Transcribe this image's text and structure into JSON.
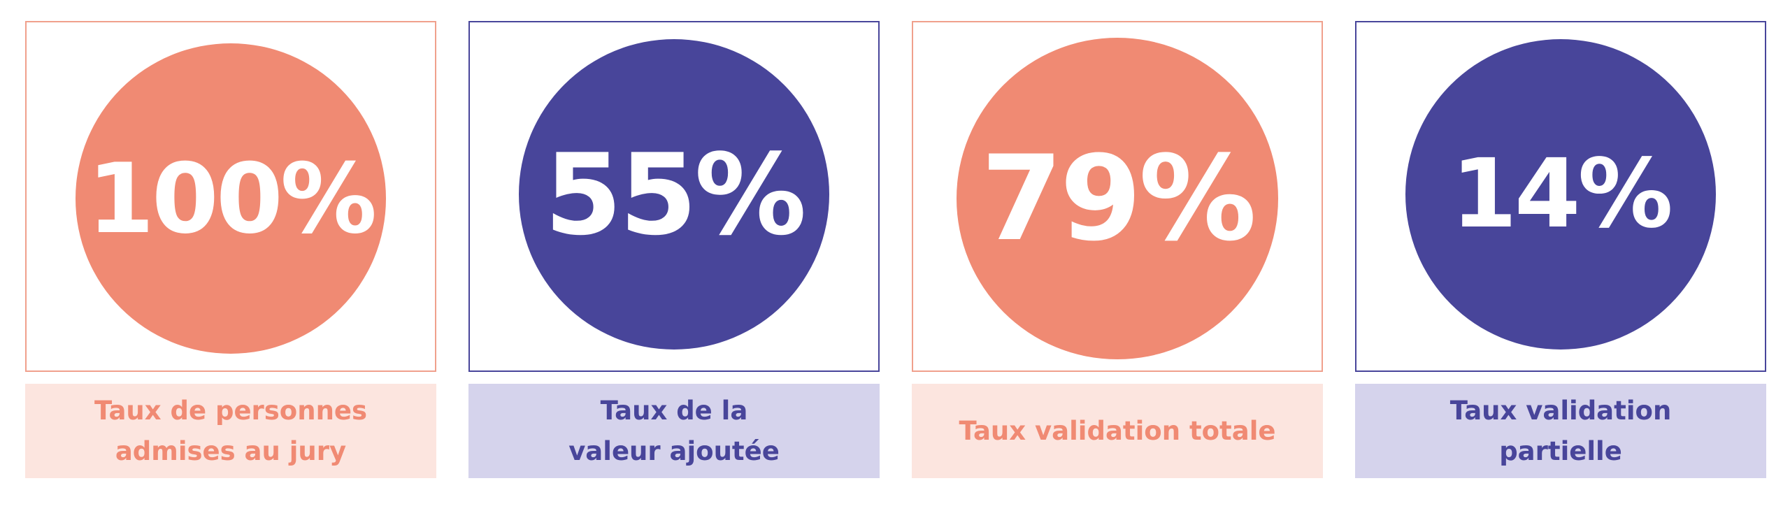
{
  "colors": {
    "salmon": "#f08a73",
    "salmon_light": "#fce5df",
    "indigo": "#48459a",
    "indigo_light": "#d5d3ec"
  },
  "stats": [
    {
      "value": "100%",
      "label_lines": [
        "Taux de personnes",
        "admises au jury"
      ]
    },
    {
      "value": "55%",
      "label_lines": [
        "Taux de la",
        "valeur ajoutée"
      ]
    },
    {
      "value": "79%",
      "label_lines": [
        "Taux validation totale"
      ]
    },
    {
      "value": "14%",
      "label_lines": [
        "Taux validation",
        "partielle"
      ]
    }
  ]
}
